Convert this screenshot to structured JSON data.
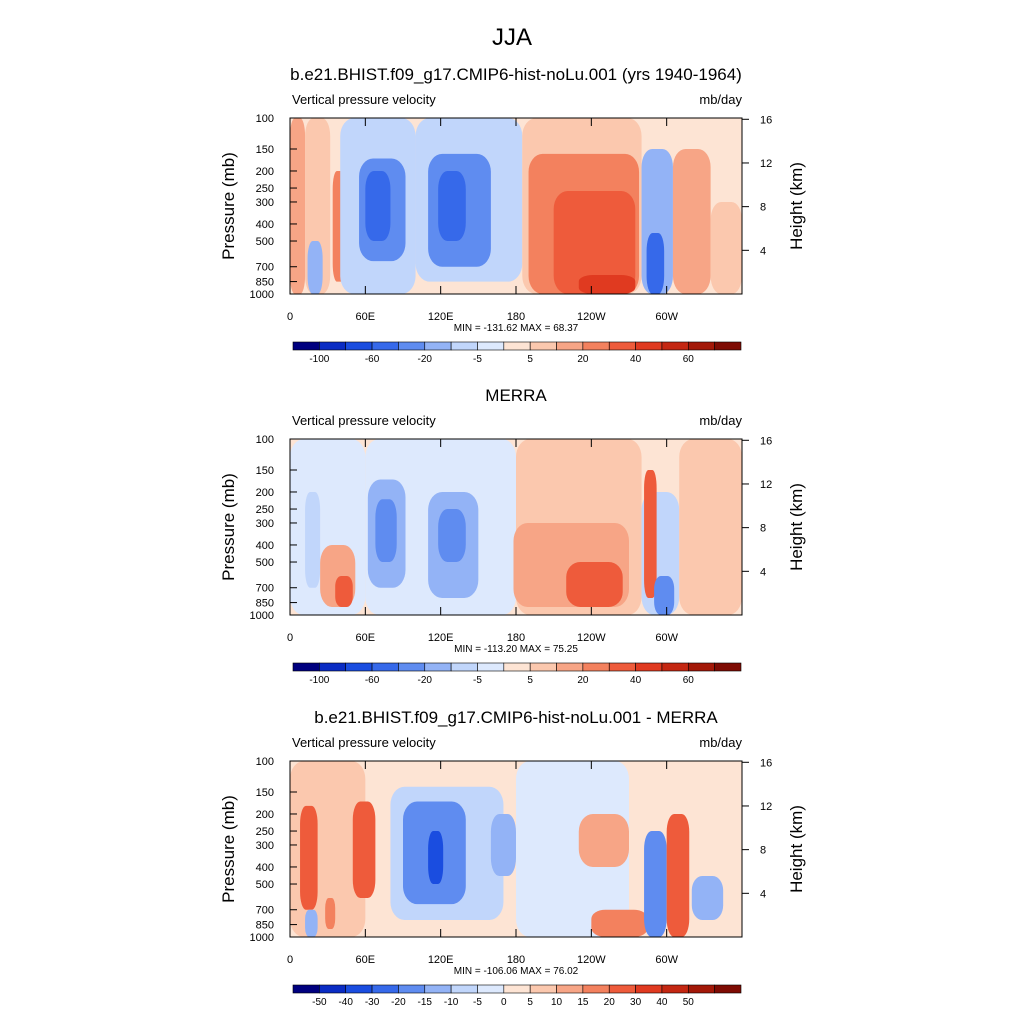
{
  "main_title": "JJA",
  "chart_data": [
    {
      "type": "heatmap",
      "title": "b.e21.BHIST.f09_g17.CMIP6-hist-noLu.001 (yrs 1940-1964)",
      "subtitle_left": "Vertical pressure velocity",
      "subtitle_right": "mb/day",
      "ylabel": "Pressure (mb)",
      "ylabel_right": "Height (km)",
      "x_ticks": [
        "0",
        "60E",
        "120E",
        "180",
        "120W",
        "60W"
      ],
      "x_tick_lon": [
        0,
        60,
        120,
        180,
        240,
        300
      ],
      "xlim": [
        0,
        360
      ],
      "y_ticks": [
        "100",
        "150",
        "200",
        "250",
        "300",
        "400",
        "500",
        "700",
        "850",
        "1000"
      ],
      "y_tick_values": [
        100,
        150,
        200,
        250,
        300,
        400,
        500,
        700,
        850,
        1000
      ],
      "ylim": [
        1000,
        100
      ],
      "y_scale": "log",
      "right_ticks": [
        "16",
        "12",
        "8",
        "4"
      ],
      "right_tick_km": [
        16,
        12,
        8,
        4
      ],
      "stats": "MIN = -131.62  MAX =  68.37",
      "colorbar_labels": [
        "-100",
        "-60",
        "-20",
        "-5",
        "5",
        "20",
        "40",
        "60"
      ],
      "colorbar_colors": [
        "#00007f",
        "#0a2cc4",
        "#1a4de0",
        "#3669ea",
        "#5f8cf0",
        "#93b3f6",
        "#c1d6fb",
        "#dde9fd",
        "#fde4d4",
        "#fbc8ae",
        "#f7a586",
        "#f3815e",
        "#ee5b3b",
        "#e03a20",
        "#c42712",
        "#a31808",
        "#7e0b03"
      ],
      "colorbar_label_index": [
        1,
        3,
        5,
        7,
        9,
        11,
        13,
        15
      ],
      "regions": [
        {
          "lon": [
            0,
            12
          ],
          "p": [
            100,
            1000
          ],
          "level": 2
        },
        {
          "lon": [
            12,
            32
          ],
          "p": [
            100,
            1000
          ],
          "level": 1
        },
        {
          "lon": [
            34,
            44
          ],
          "p": [
            200,
            850
          ],
          "level": 3
        },
        {
          "lon": [
            14,
            26
          ],
          "p": [
            500,
            1000
          ],
          "level": -3
        },
        {
          "lon": [
            40,
            100
          ],
          "p": [
            100,
            1000
          ],
          "level": -2
        },
        {
          "lon": [
            55,
            92
          ],
          "p": [
            170,
            650
          ],
          "level": -4
        },
        {
          "lon": [
            60,
            80
          ],
          "p": [
            200,
            500
          ],
          "level": -5
        },
        {
          "lon": [
            100,
            185
          ],
          "p": [
            100,
            850
          ],
          "level": -2
        },
        {
          "lon": [
            110,
            160
          ],
          "p": [
            160,
            700
          ],
          "level": -4
        },
        {
          "lon": [
            118,
            140
          ],
          "p": [
            200,
            500
          ],
          "level": -5
        },
        {
          "lon": [
            185,
            280
          ],
          "p": [
            100,
            1000
          ],
          "level": 1
        },
        {
          "lon": [
            190,
            278
          ],
          "p": [
            160,
            1000
          ],
          "level": 3
        },
        {
          "lon": [
            210,
            275
          ],
          "p": [
            260,
            1000
          ],
          "level": 4
        },
        {
          "lon": [
            230,
            275
          ],
          "p": [
            780,
            1000
          ],
          "level": 5
        },
        {
          "lon": [
            280,
            305
          ],
          "p": [
            150,
            1000
          ],
          "level": -3
        },
        {
          "lon": [
            284,
            298
          ],
          "p": [
            450,
            1000
          ],
          "level": -5
        },
        {
          "lon": [
            305,
            335
          ],
          "p": [
            150,
            1000
          ],
          "level": 2
        },
        {
          "lon": [
            335,
            360
          ],
          "p": [
            300,
            1000
          ],
          "level": 1
        }
      ]
    },
    {
      "type": "heatmap",
      "title": "MERRA",
      "subtitle_left": "Vertical pressure velocity",
      "subtitle_right": "mb/day",
      "ylabel": "Pressure (mb)",
      "ylabel_right": "Height (km)",
      "x_ticks": [
        "0",
        "60E",
        "120E",
        "180",
        "120W",
        "60W"
      ],
      "x_tick_lon": [
        0,
        60,
        120,
        180,
        240,
        300
      ],
      "xlim": [
        0,
        360
      ],
      "y_ticks": [
        "100",
        "150",
        "200",
        "250",
        "300",
        "400",
        "500",
        "700",
        "850",
        "1000"
      ],
      "y_tick_values": [
        100,
        150,
        200,
        250,
        300,
        400,
        500,
        700,
        850,
        1000
      ],
      "ylim": [
        1000,
        100
      ],
      "y_scale": "log",
      "right_ticks": [
        "16",
        "12",
        "8",
        "4"
      ],
      "right_tick_km": [
        16,
        12,
        8,
        4
      ],
      "stats": "MIN = -113.20  MAX =  75.25",
      "colorbar_labels": [
        "-100",
        "-60",
        "-20",
        "-5",
        "5",
        "20",
        "40",
        "60"
      ],
      "colorbar_colors": [
        "#00007f",
        "#0a2cc4",
        "#1a4de0",
        "#3669ea",
        "#5f8cf0",
        "#93b3f6",
        "#c1d6fb",
        "#dde9fd",
        "#fde4d4",
        "#fbc8ae",
        "#f7a586",
        "#f3815e",
        "#ee5b3b",
        "#e03a20",
        "#c42712",
        "#a31808",
        "#7e0b03"
      ],
      "colorbar_label_index": [
        1,
        3,
        5,
        7,
        9,
        11,
        13,
        15
      ],
      "regions": [
        {
          "lon": [
            0,
            60
          ],
          "p": [
            100,
            1000
          ],
          "level": -1
        },
        {
          "lon": [
            12,
            24
          ],
          "p": [
            200,
            700
          ],
          "level": -2
        },
        {
          "lon": [
            24,
            52
          ],
          "p": [
            400,
            900
          ],
          "level": 2
        },
        {
          "lon": [
            36,
            50
          ],
          "p": [
            600,
            900
          ],
          "level": 4
        },
        {
          "lon": [
            60,
            180
          ],
          "p": [
            100,
            1000
          ],
          "level": -1
        },
        {
          "lon": [
            62,
            92
          ],
          "p": [
            170,
            700
          ],
          "level": -3
        },
        {
          "lon": [
            68,
            85
          ],
          "p": [
            220,
            500
          ],
          "level": -4
        },
        {
          "lon": [
            110,
            150
          ],
          "p": [
            200,
            800
          ],
          "level": -3
        },
        {
          "lon": [
            118,
            140
          ],
          "p": [
            250,
            500
          ],
          "level": -4
        },
        {
          "lon": [
            180,
            280
          ],
          "p": [
            100,
            1000
          ],
          "level": 1
        },
        {
          "lon": [
            178,
            270
          ],
          "p": [
            300,
            900
          ],
          "level": 2
        },
        {
          "lon": [
            220,
            265
          ],
          "p": [
            500,
            900
          ],
          "level": 4
        },
        {
          "lon": [
            280,
            310
          ],
          "p": [
            200,
            1000
          ],
          "level": -2
        },
        {
          "lon": [
            282,
            292
          ],
          "p": [
            150,
            800
          ],
          "level": 4
        },
        {
          "lon": [
            290,
            306
          ],
          "p": [
            600,
            1000
          ],
          "level": -4
        },
        {
          "lon": [
            310,
            360
          ],
          "p": [
            100,
            1000
          ],
          "level": 1
        }
      ]
    },
    {
      "type": "heatmap",
      "title": "b.e21.BHIST.f09_g17.CMIP6-hist-noLu.001 - MERRA",
      "subtitle_left": "Vertical pressure velocity",
      "subtitle_right": "mb/day",
      "ylabel": "Pressure (mb)",
      "ylabel_right": "Height (km)",
      "x_ticks": [
        "0",
        "60E",
        "120E",
        "180",
        "120W",
        "60W"
      ],
      "x_tick_lon": [
        0,
        60,
        120,
        180,
        240,
        300
      ],
      "xlim": [
        0,
        360
      ],
      "y_ticks": [
        "100",
        "150",
        "200",
        "250",
        "300",
        "400",
        "500",
        "700",
        "850",
        "1000"
      ],
      "y_tick_values": [
        100,
        150,
        200,
        250,
        300,
        400,
        500,
        700,
        850,
        1000
      ],
      "ylim": [
        1000,
        100
      ],
      "y_scale": "log",
      "right_ticks": [
        "16",
        "12",
        "8",
        "4"
      ],
      "right_tick_km": [
        16,
        12,
        8,
        4
      ],
      "stats": "MIN = -106.06  MAX =  76.02",
      "colorbar_labels": [
        "-50",
        "-40",
        "-30",
        "-20",
        "-15",
        "-10",
        "-5",
        "0",
        "5",
        "10",
        "15",
        "20",
        "30",
        "40",
        "50"
      ],
      "colorbar_colors": [
        "#00007f",
        "#0a2cc4",
        "#1a4de0",
        "#3669ea",
        "#5f8cf0",
        "#93b3f6",
        "#c1d6fb",
        "#dde9fd",
        "#fde4d4",
        "#fbc8ae",
        "#f7a586",
        "#f3815e",
        "#ee5b3b",
        "#e03a20",
        "#c42712",
        "#a31808",
        "#7e0b03"
      ],
      "colorbar_label_index": [
        1,
        2,
        3,
        4,
        5,
        6,
        7,
        8,
        9,
        10,
        11,
        12,
        13,
        14,
        15
      ],
      "regions": [
        {
          "lon": [
            0,
            60
          ],
          "p": [
            100,
            1000
          ],
          "level": 1
        },
        {
          "lon": [
            8,
            22
          ],
          "p": [
            180,
            700
          ],
          "level": 4
        },
        {
          "lon": [
            50,
            68
          ],
          "p": [
            170,
            600
          ],
          "level": 4
        },
        {
          "lon": [
            12,
            22
          ],
          "p": [
            700,
            1000
          ],
          "level": -3
        },
        {
          "lon": [
            28,
            36
          ],
          "p": [
            600,
            900
          ],
          "level": 3
        },
        {
          "lon": [
            80,
            170
          ],
          "p": [
            140,
            800
          ],
          "level": -2
        },
        {
          "lon": [
            90,
            140
          ],
          "p": [
            170,
            650
          ],
          "level": -4
        },
        {
          "lon": [
            110,
            122
          ],
          "p": [
            250,
            500
          ],
          "level": -6
        },
        {
          "lon": [
            160,
            180
          ],
          "p": [
            200,
            450
          ],
          "level": -3
        },
        {
          "lon": [
            180,
            270
          ],
          "p": [
            100,
            1000
          ],
          "level": -1
        },
        {
          "lon": [
            230,
            270
          ],
          "p": [
            200,
            400
          ],
          "level": 2
        },
        {
          "lon": [
            240,
            285
          ],
          "p": [
            700,
            1000
          ],
          "level": 3
        },
        {
          "lon": [
            282,
            300
          ],
          "p": [
            250,
            1000
          ],
          "level": -4
        },
        {
          "lon": [
            300,
            318
          ],
          "p": [
            200,
            1000
          ],
          "level": 4
        },
        {
          "lon": [
            320,
            345
          ],
          "p": [
            450,
            800
          ],
          "level": -3
        }
      ]
    }
  ]
}
